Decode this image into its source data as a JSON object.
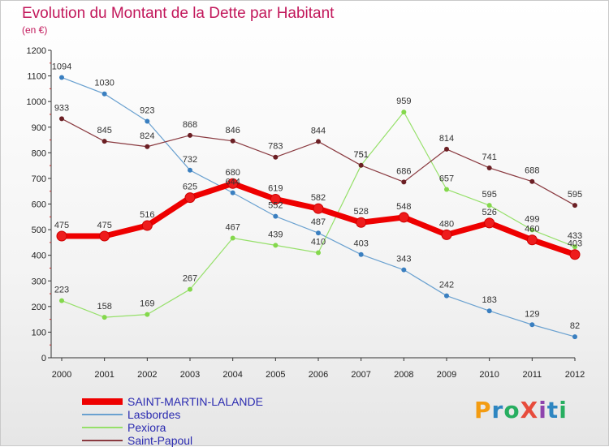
{
  "title": "Evolution du Montant de la Dette par Habitant",
  "subtitle": "(en €)",
  "logo": {
    "text": "ProXiti",
    "letter_colors": [
      "#f39c12",
      "#2e86c1",
      "#27ae60",
      "#e74c3c",
      "#8e44ad",
      "#2e86c1",
      "#27ae60"
    ]
  },
  "chart_data": {
    "type": "line",
    "title": "Evolution du Montant de la Dette par Habitant",
    "subtitle": "(en €)",
    "x": [
      "2000",
      "2001",
      "2002",
      "2003",
      "2004",
      "2005",
      "2006",
      "2007",
      "2008",
      "2009",
      "2010",
      "2011",
      "2012"
    ],
    "ylim": [
      0,
      1200
    ],
    "yticks": [
      0,
      100,
      200,
      300,
      400,
      500,
      600,
      700,
      800,
      900,
      1000,
      1100,
      1200
    ],
    "grid": false,
    "legend_position": "bottom-left",
    "series": [
      {
        "name": "SAINT-MARTIN-LALANDE",
        "color": "#ee0000",
        "point_color": "#ee1c1c",
        "width": 7,
        "values": [
          475,
          475,
          516,
          625,
          680,
          619,
          582,
          528,
          548,
          480,
          526,
          460,
          403
        ]
      },
      {
        "name": "Lasbordes",
        "color": "#6aa1d0",
        "point_color": "#3a7fc0",
        "width": 1.2,
        "values": [
          1094,
          1030,
          923,
          732,
          644,
          552,
          487,
          403,
          343,
          242,
          183,
          129,
          82
        ]
      },
      {
        "name": "Pexiora",
        "color": "#96e06a",
        "point_color": "#84d84c",
        "width": 1.2,
        "values": [
          223,
          158,
          169,
          267,
          467,
          439,
          410,
          751,
          959,
          657,
          595,
          499,
          433
        ]
      },
      {
        "name": "Saint-Papoul",
        "color": "#8a3a40",
        "point_color": "#6b1f24",
        "width": 1.2,
        "values": [
          933,
          845,
          824,
          868,
          846,
          783,
          844,
          751,
          686,
          814,
          741,
          688,
          595
        ]
      }
    ]
  }
}
